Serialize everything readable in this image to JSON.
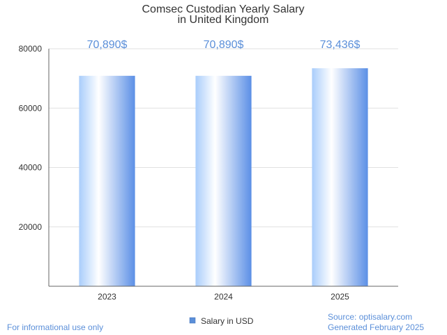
{
  "chart_data": {
    "type": "bar",
    "title_lines": [
      "Comsec Custodian Yearly Salary",
      "in United Kingdom"
    ],
    "categories": [
      "2023",
      "2024",
      "2025"
    ],
    "series": [
      {
        "name": "Salary in USD",
        "values": [
          70890,
          70890,
          73436
        ]
      }
    ],
    "data_labels": [
      "70,890$",
      "70,890$",
      "73,436$"
    ],
    "y_ticks": [
      "20000",
      "40000",
      "60000",
      "80000"
    ],
    "ylim": [
      0,
      80000
    ],
    "xlabel": "",
    "ylabel": "",
    "grid": true,
    "legend_position": "bottom-center"
  },
  "footer": {
    "left_note": "For informational use only",
    "source": "Source: optisalary.com",
    "generated": "Generated February 2025"
  },
  "colors": {
    "bar_light": "#ffffff",
    "bar_mid": "#a9cdfb",
    "bar_dark": "#5b8fe6",
    "label": "#5b8fd9",
    "legend_marker": "#5b8fd9"
  }
}
